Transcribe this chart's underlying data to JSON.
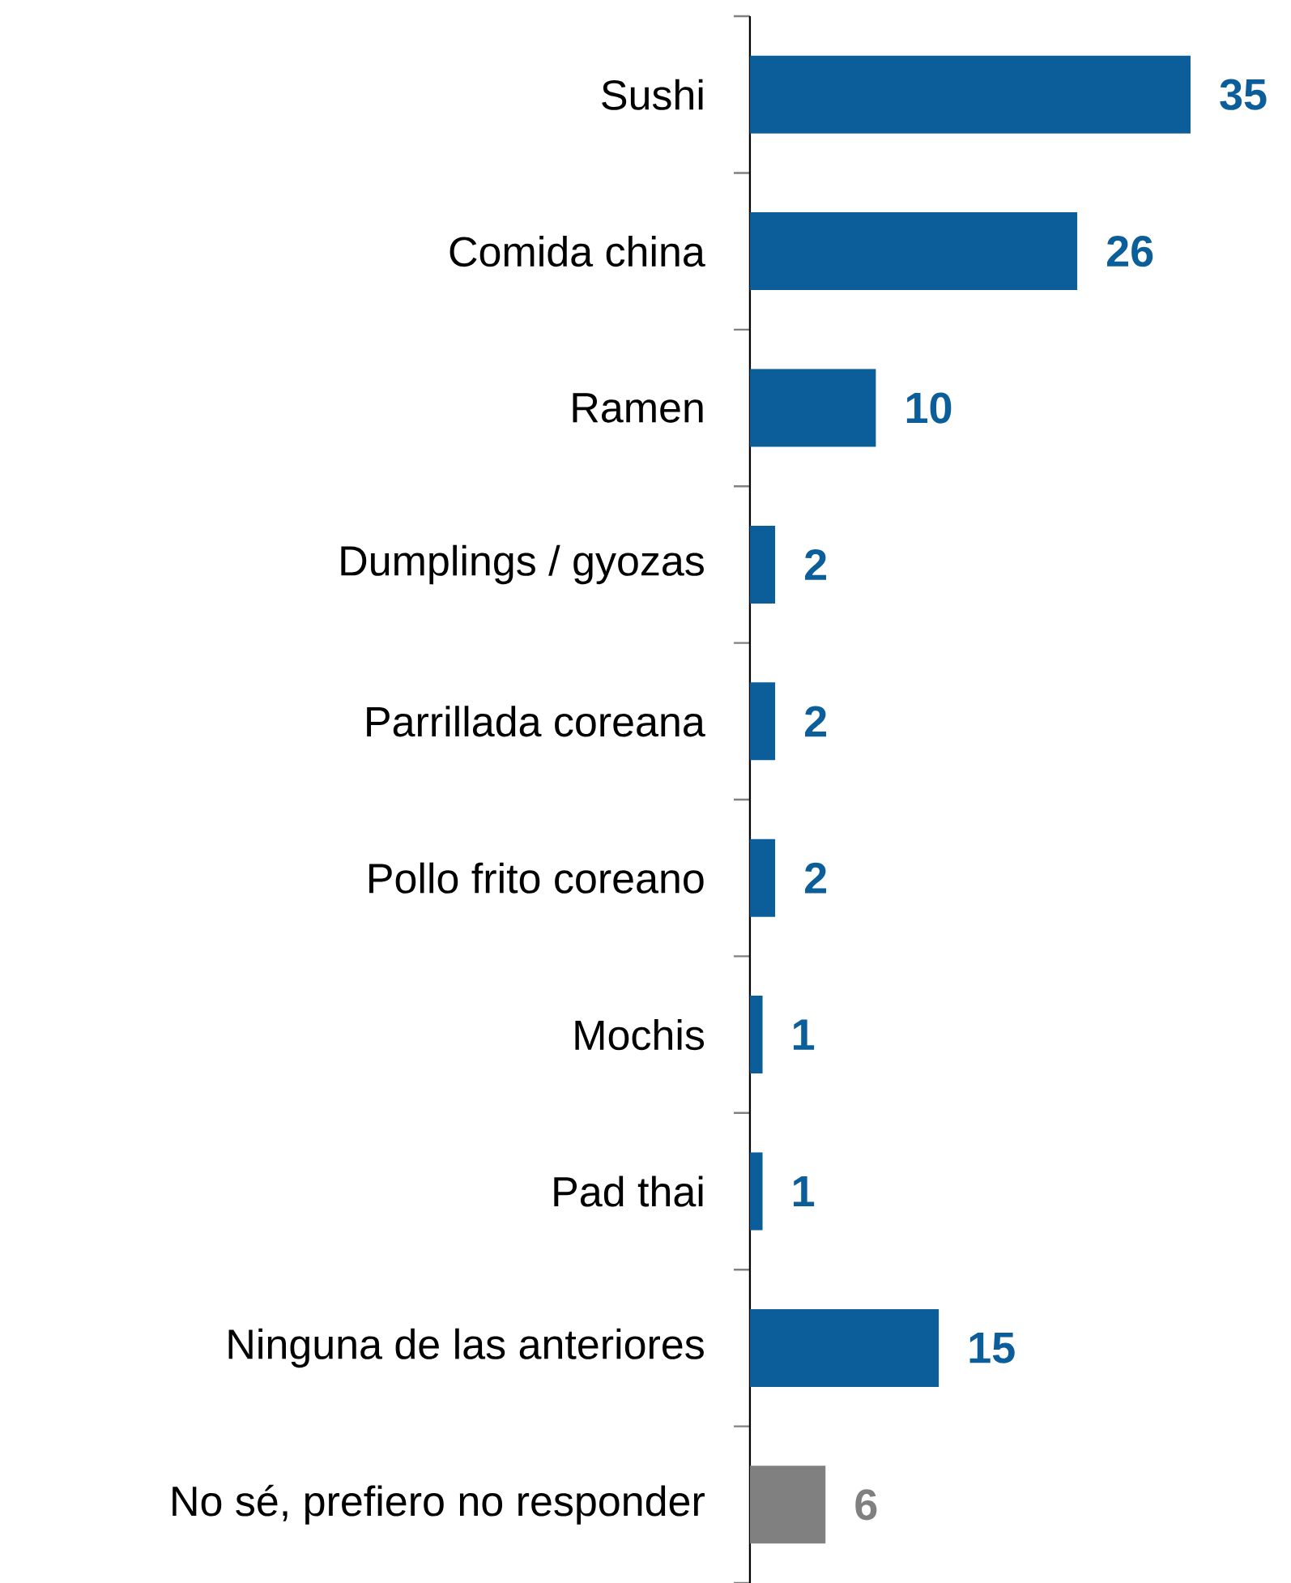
{
  "chart_data": {
    "type": "bar",
    "orientation": "horizontal",
    "data_labels": true,
    "categories": [
      "Sushi",
      "Comida china",
      "Ramen",
      "Dumplings / gyozas",
      "Parrillada coreana",
      "Pollo frito coreano",
      "Mochis",
      "Pad thai",
      "Ninguna de las anteriores",
      "No sé, prefiero no responder"
    ],
    "values": [
      35,
      26,
      10,
      2,
      2,
      2,
      1,
      1,
      15,
      6
    ],
    "colors": [
      "#0b5e9a",
      "#0b5e9a",
      "#0b5e9a",
      "#0b5e9a",
      "#0b5e9a",
      "#0b5e9a",
      "#0b5e9a",
      "#0b5e9a",
      "#0b5e9a",
      "#808080"
    ]
  }
}
